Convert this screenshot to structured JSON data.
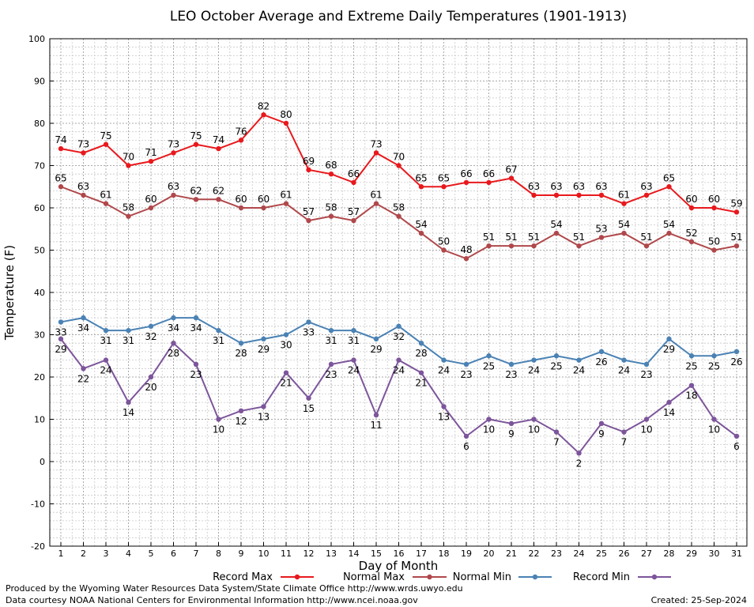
{
  "chart_data": {
    "type": "line",
    "title": "LEO October Average and Extreme Daily Temperatures (1901-1913)",
    "xlabel": "Day of Month",
    "ylabel": "Temperature (F)",
    "ylim": [
      -20,
      100
    ],
    "yticks": [
      -20,
      -10,
      0,
      10,
      20,
      30,
      40,
      50,
      60,
      70,
      80,
      90,
      100
    ],
    "x": [
      1,
      2,
      3,
      4,
      5,
      6,
      7,
      8,
      9,
      10,
      11,
      12,
      13,
      14,
      15,
      16,
      17,
      18,
      19,
      20,
      21,
      22,
      23,
      24,
      25,
      26,
      27,
      28,
      29,
      30,
      31
    ],
    "grid": true,
    "legend_position": "bottom",
    "series": [
      {
        "name": "Record Max",
        "color": "#e8191d",
        "label_pos": "above",
        "values": [
          74,
          73,
          75,
          70,
          71,
          73,
          75,
          74,
          76,
          82,
          80,
          69,
          68,
          66,
          73,
          70,
          65,
          65,
          66,
          66,
          67,
          63,
          63,
          63,
          63,
          61,
          63,
          65,
          60,
          60,
          59
        ]
      },
      {
        "name": "Normal Max",
        "color": "#b0484b",
        "label_pos": "above",
        "values": [
          65,
          63,
          61,
          58,
          60,
          63,
          62,
          62,
          60,
          60,
          61,
          57,
          58,
          57,
          61,
          58,
          54,
          50,
          48,
          51,
          51,
          51,
          54,
          51,
          53,
          54,
          51,
          54,
          52,
          50,
          51
        ]
      },
      {
        "name": "Normal Min",
        "color": "#4a82b4",
        "label_pos": "below",
        "values": [
          33,
          34,
          31,
          31,
          32,
          34,
          34,
          31,
          28,
          29,
          30,
          33,
          31,
          31,
          29,
          32,
          28,
          24,
          23,
          25,
          23,
          24,
          25,
          24,
          26,
          24,
          23,
          29,
          25,
          25,
          26
        ]
      },
      {
        "name": "Record Min",
        "color": "#7d559b",
        "label_pos": "below",
        "values": [
          29,
          22,
          24,
          14,
          20,
          28,
          23,
          10,
          12,
          13,
          21,
          15,
          23,
          24,
          11,
          24,
          21,
          13,
          6,
          10,
          9,
          10,
          7,
          2,
          9,
          7,
          10,
          14,
          18,
          10,
          6
        ]
      }
    ]
  },
  "footer": {
    "line1": "Produced by the Wyoming Water Resources Data System/State Climate Office http://www.wrds.uwyo.edu",
    "line2": "Data courtesy NOAA National Centers for Environmental Information http://www.ncei.noaa.gov",
    "created": "Created:  25-Sep-2024"
  }
}
